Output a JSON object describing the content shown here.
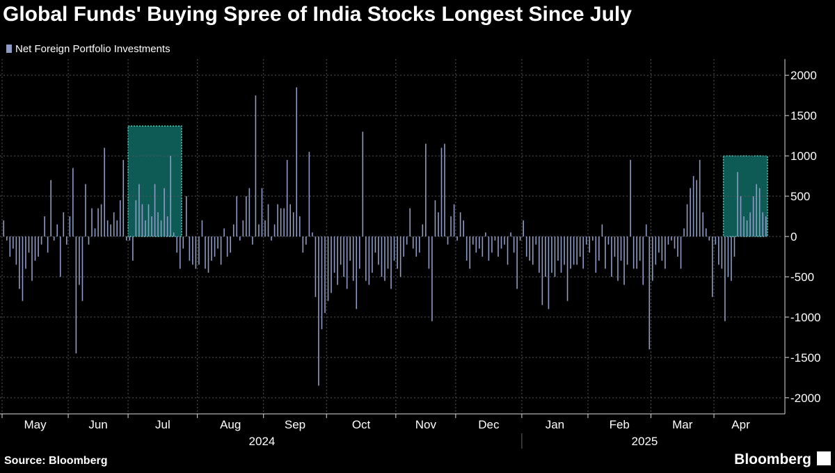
{
  "chart_data": {
    "type": "bar",
    "title": "Global Funds' Buying Spree of India Stocks Longest Since July",
    "series": [
      {
        "name": "Net Foreign Portfolio Investments",
        "color": "#8e9bc4",
        "values": [
          200,
          -50,
          -250,
          -150,
          -350,
          -650,
          -800,
          -400,
          -200,
          -550,
          -300,
          -250,
          -100,
          250,
          -200,
          700,
          -50,
          150,
          -500,
          300,
          -100,
          250,
          850,
          -1450,
          -600,
          -800,
          650,
          -100,
          350,
          100,
          350,
          400,
          1100,
          200,
          150,
          300,
          200,
          450,
          950,
          -50,
          -50,
          -300,
          450,
          650,
          400,
          200,
          400,
          250,
          650,
          300,
          200,
          600,
          250,
          1000,
          50,
          -200,
          -400,
          -150,
          500,
          -300,
          -350,
          -400,
          -350,
          200,
          -400,
          -450,
          -300,
          -250,
          -150,
          -350,
          100,
          -250,
          -200,
          150,
          500,
          -50,
          200,
          500,
          600,
          -100,
          1750,
          150,
          600,
          200,
          400,
          -50,
          150,
          400,
          350,
          350,
          950,
          400,
          300,
          1850,
          250,
          -200,
          -100,
          1050,
          50,
          -750,
          -1850,
          -1150,
          -950,
          -800,
          -700,
          -450,
          -600,
          -350,
          -500,
          -650,
          -300,
          -550,
          -900,
          -400,
          1300,
          -550,
          -600,
          -450,
          -200,
          -350,
          -500,
          -550,
          -400,
          -650,
          -300,
          -400,
          -500,
          -250,
          -100,
          350,
          -150,
          -250,
          -200,
          150,
          1150,
          -400,
          -1050,
          450,
          300,
          1100,
          1150,
          -100,
          250,
          400,
          -50,
          300,
          200,
          -300,
          -400,
          -100,
          -200,
          -150,
          -250,
          50,
          -300,
          -200,
          -50,
          -250,
          -150,
          -100,
          -350,
          50,
          -200,
          -650,
          -50,
          200,
          -250,
          -300,
          -350,
          -100,
          -450,
          -850,
          -500,
          -900,
          -450,
          -500,
          -300,
          -450,
          -350,
          -800,
          -400,
          -350,
          -350,
          -250,
          -400,
          -100,
          -200,
          -50,
          -450,
          -300,
          150,
          -400,
          -100,
          -500,
          -250,
          -550,
          -300,
          -600,
          -350,
          950,
          -400,
          -400,
          -300,
          -600,
          150,
          -1400,
          -550,
          -350,
          -200,
          -300,
          -400,
          -100,
          -50,
          -150,
          -250,
          -400,
          100,
          400,
          600,
          750,
          700,
          950,
          300,
          100,
          -50,
          -750,
          -100,
          -350,
          -400,
          -1050,
          -500,
          -550,
          -250,
          800,
          500,
          250,
          200,
          300,
          500,
          650,
          600,
          300,
          250
        ]
      }
    ],
    "xlim": [
      0,
      243
    ],
    "xticks": [
      {
        "value": 0,
        "label": "May"
      },
      {
        "value": 21,
        "label": "Jun"
      },
      {
        "value": 40,
        "label": "Jul"
      },
      {
        "value": 62,
        "label": "Aug"
      },
      {
        "value": 83,
        "label": "Sep"
      },
      {
        "value": 103,
        "label": "Oct"
      },
      {
        "value": 125,
        "label": "Nov"
      },
      {
        "value": 144,
        "label": "Dec"
      },
      {
        "value": 165,
        "label": "Jan"
      },
      {
        "value": 186,
        "label": "Feb"
      },
      {
        "value": 206,
        "label": "Mar"
      },
      {
        "value": 226,
        "label": "Apr"
      }
    ],
    "years": [
      {
        "label": "2024",
        "start": 0,
        "end": 165
      },
      {
        "label": "2025",
        "start": 165,
        "end": 243
      }
    ],
    "ylim": [
      -2200,
      2200
    ],
    "yticks": [
      -2000,
      -1500,
      -1000,
      -500,
      0,
      500,
      1000,
      1500,
      2000
    ],
    "grid": true,
    "highlights": [
      {
        "start": 40,
        "end": 57,
        "top": 1370,
        "color": "#0e5a55"
      },
      {
        "start": 229,
        "end": 243,
        "top": 1000,
        "color": "#0e5a55"
      }
    ],
    "source": "Source: Bloomberg",
    "brand": "Bloomberg"
  }
}
